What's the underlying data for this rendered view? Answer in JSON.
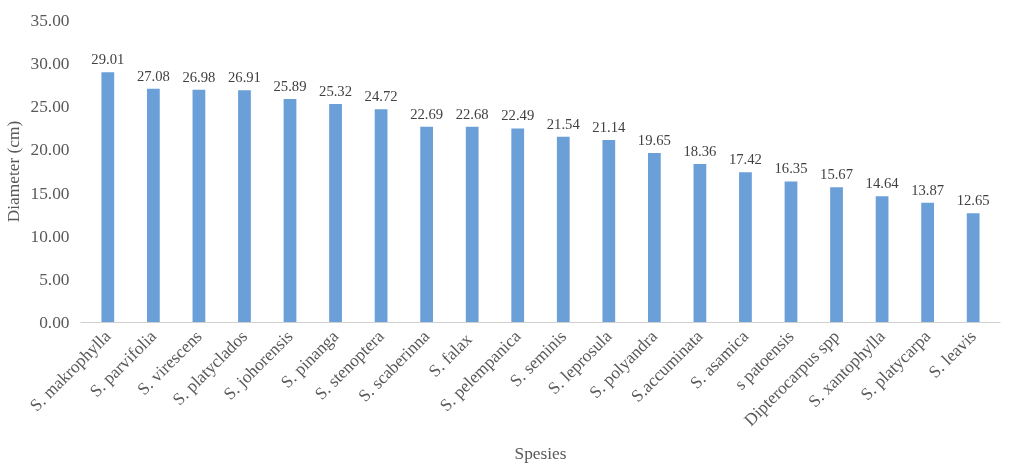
{
  "chart_data": {
    "type": "bar",
    "xlabel": "Spesies",
    "ylabel": "Diameter (cm)",
    "categories": [
      "S. makrophylla",
      "S. parvifolia",
      "S. virescens",
      "S. platyclados",
      "S. johorensis",
      "S. pinanga",
      "S. stenoptera",
      "S. scaberinna",
      "S.  falax",
      "S. pelempanica",
      "S. seminis",
      "S. leprosula",
      "S. polyandra",
      "S.accuminata",
      "S. asamica",
      "s patoensis",
      "Dipterocarpus spp",
      "S. xantophylla",
      "S. platycarpa",
      "S. leavis"
    ],
    "values": [
      29.01,
      27.08,
      26.98,
      26.91,
      25.89,
      25.32,
      24.72,
      22.69,
      22.68,
      22.49,
      21.54,
      21.14,
      19.65,
      18.36,
      17.42,
      16.35,
      15.67,
      14.64,
      13.87,
      12.65
    ],
    "color": "#6a9fd8",
    "data_labels": true,
    "grid": false,
    "ylim": [
      0,
      35
    ],
    "yticks": [
      {
        "value": 0,
        "label": "0.00"
      },
      {
        "value": 5,
        "label": "5.00"
      },
      {
        "value": 10,
        "label": "10.00"
      },
      {
        "value": 15,
        "label": "15.00"
      },
      {
        "value": 20,
        "label": "20.00"
      },
      {
        "value": 25,
        "label": "25.00"
      },
      {
        "value": 30,
        "label": "30.00"
      },
      {
        "value": 35,
        "label": "35.00"
      }
    ]
  }
}
